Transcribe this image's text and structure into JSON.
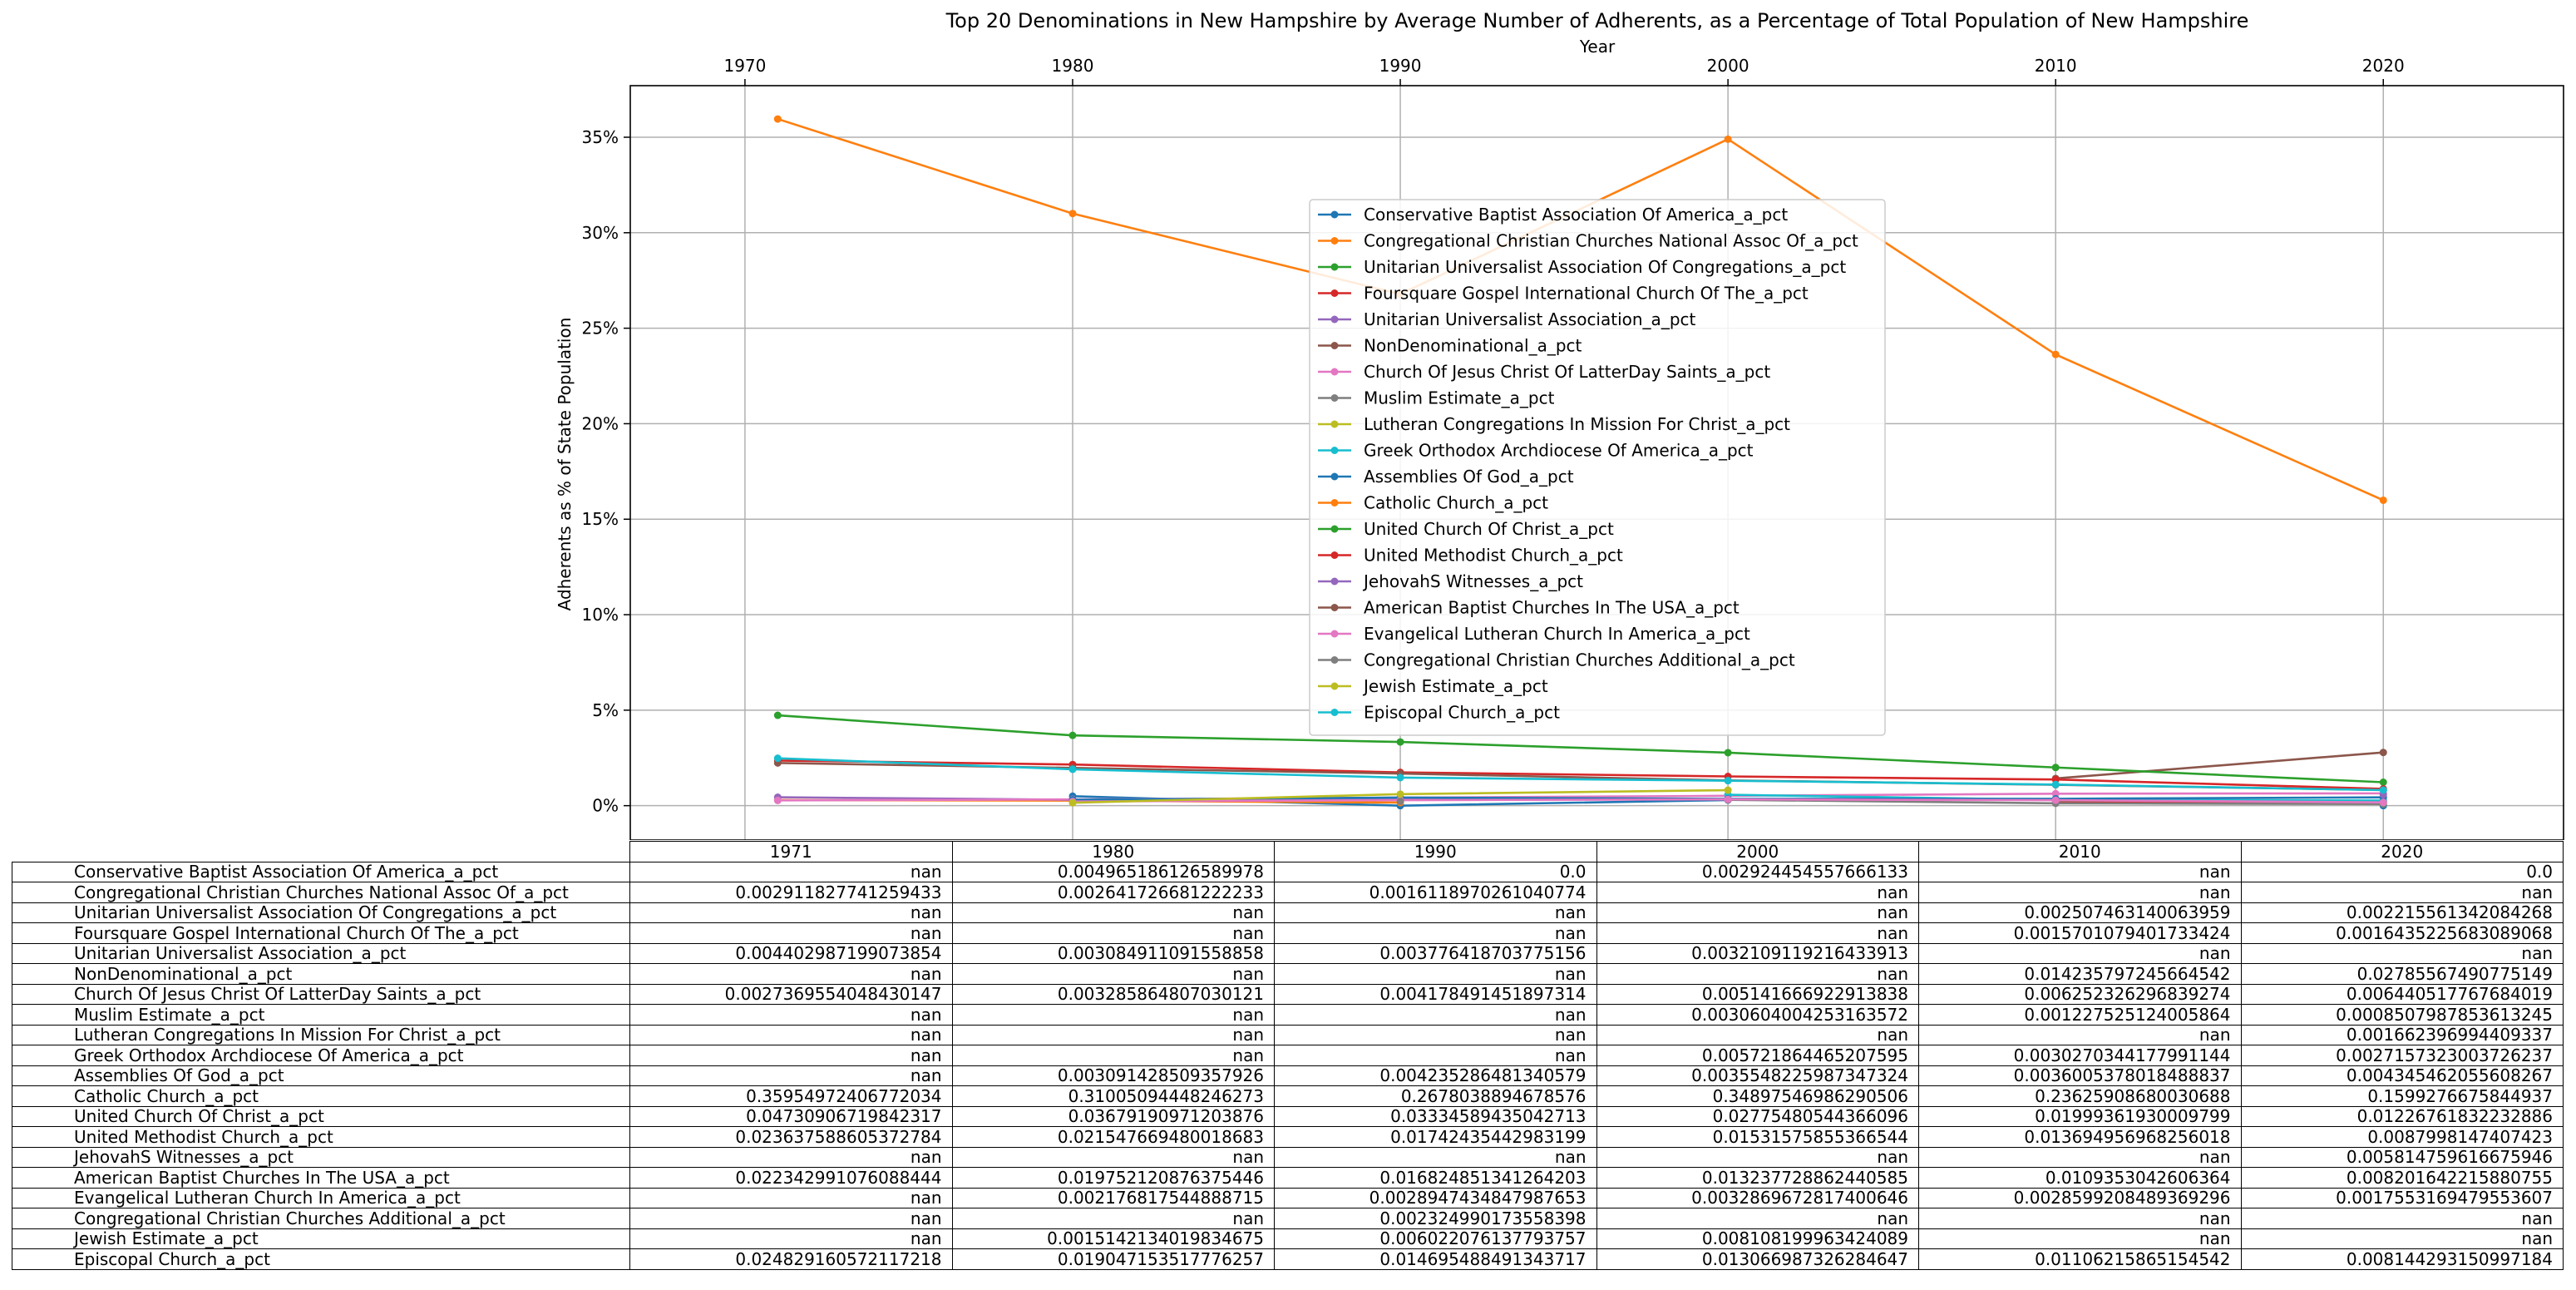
{
  "chart_data": {
    "type": "line",
    "title": "Top 20 Denominations in New Hampshire by Average Number of Adherents, as a Percentage of Total Population of New Hampshire",
    "xlabel": "Year",
    "ylabel": "Adherents as % of State Population",
    "xlim": [
      1966.5,
      2025.5
    ],
    "ylim": [
      -0.018,
      0.377
    ],
    "x_ticks": [
      1970,
      1980,
      1990,
      2000,
      2010,
      2020
    ],
    "y_ticks": [
      0,
      0.05,
      0.1,
      0.15,
      0.2,
      0.25,
      0.3,
      0.35
    ],
    "y_tick_labels": [
      "0%",
      "5%",
      "10%",
      "15%",
      "20%",
      "25%",
      "30%",
      "35%"
    ],
    "x_axis_position": "top",
    "grid": true,
    "legend_position": "upper center",
    "x": [
      1971,
      1980,
      1990,
      2000,
      2010,
      2020
    ],
    "series": [
      {
        "name": "Conservative Baptist Association Of America_a_pct",
        "color": "#1f77b4",
        "values": [
          null,
          0.004965186126589978,
          0.0,
          0.002924454557666133,
          null,
          0.0
        ]
      },
      {
        "name": "Congregational Christian Churches National Assoc Of_a_pct",
        "color": "#ff7f0e",
        "values": [
          0.002911827741259433,
          0.002641726681222233,
          0.0016118970261040774,
          null,
          null,
          null
        ]
      },
      {
        "name": "Unitarian Universalist Association Of Congregations_a_pct",
        "color": "#2ca02c",
        "values": [
          null,
          null,
          null,
          null,
          0.002507463140063959,
          0.002215561342084268
        ]
      },
      {
        "name": "Foursquare Gospel International Church Of The_a_pct",
        "color": "#d62728",
        "values": [
          null,
          null,
          null,
          null,
          0.0015701079401733424,
          0.0016435225683089068
        ]
      },
      {
        "name": "Unitarian Universalist Association_a_pct",
        "color": "#9467bd",
        "values": [
          0.004402987199073854,
          0.003084911091558858,
          0.003776418703775156,
          0.0032109119216433913,
          null,
          null
        ]
      },
      {
        "name": "NonDenominational_a_pct",
        "color": "#8c564b",
        "values": [
          null,
          null,
          null,
          null,
          0.014235797245664542,
          0.02785567490775149
        ]
      },
      {
        "name": "Church Of Jesus Christ Of LatterDay Saints_a_pct",
        "color": "#e377c2",
        "values": [
          0.0027369554048430147,
          0.003285864807030121,
          0.004178491451897314,
          0.005141666922913838,
          0.006252326296839274,
          0.006440517767684019
        ]
      },
      {
        "name": "Muslim Estimate_a_pct",
        "color": "#7f7f7f",
        "values": [
          null,
          null,
          null,
          0.0030604004253163572,
          0.001227525124005864,
          0.0008507987853613245
        ]
      },
      {
        "name": "Lutheran Congregations In Mission For Christ_a_pct",
        "color": "#bcbd22",
        "values": [
          null,
          null,
          null,
          null,
          null,
          0.001662396994409337
        ]
      },
      {
        "name": "Greek Orthodox Archdiocese Of America_a_pct",
        "color": "#17becf",
        "values": [
          null,
          null,
          null,
          0.005721864465207595,
          0.0030270344177991144,
          0.0027157323003726237
        ]
      },
      {
        "name": "Assemblies Of God_a_pct",
        "color": "#1f77b4",
        "values": [
          null,
          0.003091428509357926,
          0.004235286481340579,
          0.003554822598734732,
          0.003600537801848884,
          0.004345462055608267
        ]
      },
      {
        "name": "Catholic Church_a_pct",
        "color": "#ff7f0e",
        "values": [
          0.35954972406772034,
          0.31005094448246273,
          0.2678038894678576,
          0.34897546986290506,
          0.23625908680030688,
          0.1599276675844937
        ]
      },
      {
        "name": "United Church Of Christ_a_pct",
        "color": "#2ca02c",
        "values": [
          0.04730906719842317,
          0.03679190971203876,
          0.03334589435042713,
          0.02775480544366096,
          0.01999361930009799,
          0.01226761832232886
        ]
      },
      {
        "name": "United Methodist Church_a_pct",
        "color": "#d62728",
        "values": [
          0.023637588605372784,
          0.021547669480018683,
          0.01742435442983199,
          0.01531575855366544,
          0.013694956968256018,
          0.0087998147407423
        ]
      },
      {
        "name": "JehovahS Witnesses_a_pct",
        "color": "#9467bd",
        "values": [
          null,
          null,
          null,
          null,
          null,
          0.005814759616675946
        ]
      },
      {
        "name": "American Baptist Churches In The USA_a_pct",
        "color": "#8c564b",
        "values": [
          0.022342991076088444,
          0.019752120876375446,
          0.016824851341264203,
          0.013237728862440585,
          0.0109353042606364,
          0.008201642215880755
        ]
      },
      {
        "name": "Evangelical Lutheran Church In America_a_pct",
        "color": "#e377c2",
        "values": [
          null,
          0.002176817544888715,
          0.0028947434847987653,
          0.0032869672817400063,
          0.0028599208489369296,
          0.0017553169479553607
        ]
      },
      {
        "name": "Congregational Christian Churches Additional_a_pct",
        "color": "#7f7f7f",
        "values": [
          null,
          null,
          0.002324990173558398,
          null,
          null,
          null
        ]
      },
      {
        "name": "Jewish Estimate_a_pct",
        "color": "#bcbd22",
        "values": [
          null,
          0.0015142134019834675,
          0.006022076137793757,
          0.008108199963424089,
          null,
          null
        ]
      },
      {
        "name": "Episcopal Church_a_pct",
        "color": "#17becf",
        "values": [
          0.024829160572117218,
          0.019047153517776257,
          0.014695488491343717,
          0.013066987326284647,
          0.01106215865154542,
          0.008144293150997184
        ]
      }
    ]
  },
  "table": {
    "column_headers": [
      "1971",
      "1980",
      "1990",
      "2000",
      "2010",
      "2020"
    ],
    "rows": [
      {
        "label": "Conservative Baptist Association Of America_a_pct",
        "cells": [
          "nan",
          "0.004965186126589978",
          "0.0",
          "0.002924454557666133",
          "nan",
          "0.0"
        ]
      },
      {
        "label": "Congregational Christian Churches National Assoc Of_a_pct",
        "cells": [
          "0.002911827741259433",
          "0.002641726681222233",
          "0.0016118970261040774",
          "nan",
          "nan",
          "nan"
        ]
      },
      {
        "label": "Unitarian Universalist Association Of Congregations_a_pct",
        "cells": [
          "nan",
          "nan",
          "nan",
          "nan",
          "0.002507463140063959",
          "0.002215561342084268"
        ]
      },
      {
        "label": "Foursquare Gospel International Church Of The_a_pct",
        "cells": [
          "nan",
          "nan",
          "nan",
          "nan",
          "0.0015701079401733424",
          "0.0016435225683089068"
        ]
      },
      {
        "label": "Unitarian Universalist Association_a_pct",
        "cells": [
          "0.004402987199073854",
          "0.003084911091558858",
          "0.003776418703775156",
          "0.0032109119216433913",
          "nan",
          "nan"
        ]
      },
      {
        "label": "NonDenominational_a_pct",
        "cells": [
          "nan",
          "nan",
          "nan",
          "nan",
          "0.014235797245664542",
          "0.02785567490775149"
        ]
      },
      {
        "label": "Church Of Jesus Christ Of LatterDay Saints_a_pct",
        "cells": [
          "0.0027369554048430147",
          "0.003285864807030121",
          "0.004178491451897314",
          "0.005141666922913838",
          "0.006252326296839274",
          "0.006440517767684019"
        ]
      },
      {
        "label": "Muslim Estimate_a_pct",
        "cells": [
          "nan",
          "nan",
          "nan",
          "0.0030604004253163572",
          "0.001227525124005864",
          "0.0008507987853613245"
        ]
      },
      {
        "label": "Lutheran Congregations In Mission For Christ_a_pct",
        "cells": [
          "nan",
          "nan",
          "nan",
          "nan",
          "nan",
          "0.001662396994409337"
        ]
      },
      {
        "label": "Greek Orthodox Archdiocese Of America_a_pct",
        "cells": [
          "nan",
          "nan",
          "nan",
          "0.005721864465207595",
          "0.0030270344177991144",
          "0.0027157323003726237"
        ]
      },
      {
        "label": "Assemblies Of God_a_pct",
        "cells": [
          "nan",
          "0.003091428509357926",
          "0.004235286481340579",
          "0.0035548225987347324",
          "0.0036005378018488837",
          "0.004345462055608267"
        ]
      },
      {
        "label": "Catholic Church_a_pct",
        "cells": [
          "0.35954972406772034",
          "0.31005094448246273",
          "0.2678038894678576",
          "0.34897546986290506",
          "0.23625908680030688",
          "0.1599276675844937"
        ]
      },
      {
        "label": "United Church Of Christ_a_pct",
        "cells": [
          "0.04730906719842317",
          "0.03679190971203876",
          "0.03334589435042713",
          "0.02775480544366096",
          "0.01999361930009799",
          "0.01226761832232886"
        ]
      },
      {
        "label": "United Methodist Church_a_pct",
        "cells": [
          "0.023637588605372784",
          "0.021547669480018683",
          "0.01742435442983199",
          "0.01531575855366544",
          "0.013694956968256018",
          "0.0087998147407423"
        ]
      },
      {
        "label": "JehovahS Witnesses_a_pct",
        "cells": [
          "nan",
          "nan",
          "nan",
          "nan",
          "nan",
          "0.005814759616675946"
        ]
      },
      {
        "label": "American Baptist Churches In The USA_a_pct",
        "cells": [
          "0.022342991076088444",
          "0.019752120876375446",
          "0.016824851341264203",
          "0.013237728862440585",
          "0.0109353042606364",
          "0.008201642215880755"
        ]
      },
      {
        "label": "Evangelical Lutheran Church In America_a_pct",
        "cells": [
          "nan",
          "0.002176817544888715",
          "0.0028947434847987653",
          "0.0032869672817400646",
          "0.0028599208489369296",
          "0.0017553169479553607"
        ]
      },
      {
        "label": "Congregational Christian Churches Additional_a_pct",
        "cells": [
          "nan",
          "nan",
          "0.002324990173558398",
          "nan",
          "nan",
          "nan"
        ]
      },
      {
        "label": "Jewish Estimate_a_pct",
        "cells": [
          "nan",
          "0.0015142134019834675",
          "0.006022076137793757",
          "0.008108199963424089",
          "nan",
          "nan"
        ]
      },
      {
        "label": "Episcopal Church_a_pct",
        "cells": [
          "0.024829160572117218",
          "0.019047153517776257",
          "0.014695488491343717",
          "0.013066987326284647",
          "0.01106215865154542",
          "0.008144293150997184"
        ]
      }
    ]
  }
}
